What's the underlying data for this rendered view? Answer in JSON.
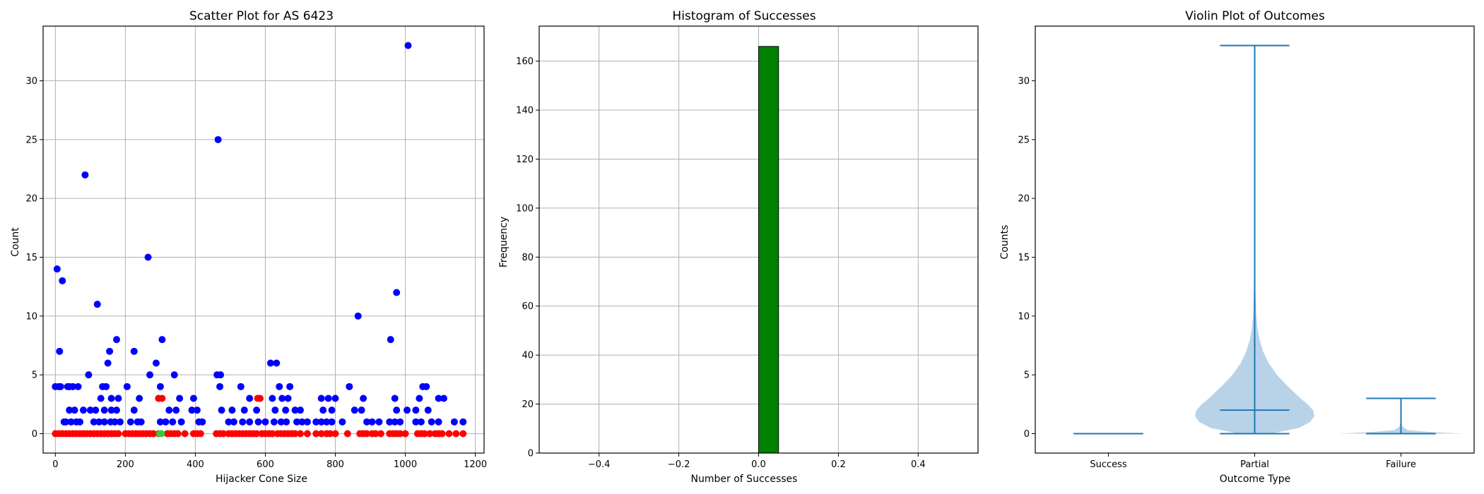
{
  "chart_data": [
    {
      "type": "scatter",
      "title": "Scatter Plot for AS 6423",
      "xlabel": "Hijacker Cone Size",
      "ylabel": "Count",
      "xlim": [
        -35,
        1225
      ],
      "ylim": [
        -1.65,
        34.65
      ],
      "xticks": [
        0,
        200,
        400,
        600,
        800,
        1000,
        1200
      ],
      "yticks": [
        0,
        5,
        10,
        15,
        20,
        25,
        30
      ],
      "grid": true,
      "series": [
        {
          "color": "#0000ff",
          "points": [
            [
              5,
              14
            ],
            [
              12,
              7
            ],
            [
              20,
              13
            ],
            [
              85,
              22
            ],
            [
              120,
              11
            ],
            [
              265,
              15
            ],
            [
              465,
              25
            ],
            [
              1008,
              33
            ],
            [
              865,
              10
            ],
            [
              975,
              12
            ],
            [
              958,
              8
            ],
            [
              175,
              8
            ],
            [
              305,
              8
            ],
            [
              155,
              7
            ],
            [
              225,
              7
            ],
            [
              615,
              6
            ],
            [
              632,
              6
            ],
            [
              150,
              6
            ],
            [
              288,
              6
            ],
            [
              0,
              4
            ],
            [
              15,
              4
            ],
            [
              35,
              4
            ],
            [
              50,
              4
            ],
            [
              65,
              4
            ],
            [
              95,
              5
            ],
            [
              270,
              5
            ],
            [
              340,
              5
            ],
            [
              462,
              5
            ],
            [
              472,
              5
            ],
            [
              10,
              4
            ],
            [
              40,
              4
            ],
            [
              135,
              4
            ],
            [
              145,
              4
            ],
            [
              205,
              4
            ],
            [
              300,
              4
            ],
            [
              470,
              4
            ],
            [
              530,
              4
            ],
            [
              640,
              4
            ],
            [
              670,
              4
            ],
            [
              840,
              4
            ],
            [
              1050,
              4
            ],
            [
              1060,
              4
            ],
            [
              80,
              2
            ],
            [
              130,
              3
            ],
            [
              160,
              3
            ],
            [
              180,
              3
            ],
            [
              240,
              3
            ],
            [
              295,
              3
            ],
            [
              355,
              3
            ],
            [
              395,
              3
            ],
            [
              555,
              3
            ],
            [
              620,
              3
            ],
            [
              648,
              3
            ],
            [
              665,
              3
            ],
            [
              760,
              3
            ],
            [
              780,
              3
            ],
            [
              800,
              3
            ],
            [
              880,
              3
            ],
            [
              970,
              3
            ],
            [
              1040,
              3
            ],
            [
              1095,
              3
            ],
            [
              1110,
              3
            ],
            [
              40,
              2
            ],
            [
              55,
              2
            ],
            [
              100,
              2
            ],
            [
              115,
              2
            ],
            [
              140,
              2
            ],
            [
              160,
              2
            ],
            [
              175,
              2
            ],
            [
              225,
              2
            ],
            [
              325,
              2
            ],
            [
              345,
              2
            ],
            [
              390,
              2
            ],
            [
              405,
              2
            ],
            [
              475,
              2
            ],
            [
              505,
              2
            ],
            [
              540,
              2
            ],
            [
              575,
              2
            ],
            [
              628,
              2
            ],
            [
              658,
              2
            ],
            [
              685,
              2
            ],
            [
              700,
              2
            ],
            [
              765,
              2
            ],
            [
              790,
              2
            ],
            [
              855,
              2
            ],
            [
              875,
              2
            ],
            [
              975,
              2
            ],
            [
              1005,
              2
            ],
            [
              1030,
              2
            ],
            [
              1065,
              2
            ],
            [
              25,
              1
            ],
            [
              30,
              1
            ],
            [
              45,
              1
            ],
            [
              60,
              1
            ],
            [
              70,
              1
            ],
            [
              110,
              1
            ],
            [
              125,
              1
            ],
            [
              140,
              1
            ],
            [
              158,
              1
            ],
            [
              170,
              1
            ],
            [
              185,
              1
            ],
            [
              215,
              1
            ],
            [
              235,
              1
            ],
            [
              245,
              1
            ],
            [
              300,
              1
            ],
            [
              315,
              1
            ],
            [
              335,
              1
            ],
            [
              360,
              1
            ],
            [
              410,
              1
            ],
            [
              420,
              1
            ],
            [
              495,
              1
            ],
            [
              510,
              1
            ],
            [
              535,
              1
            ],
            [
              555,
              1
            ],
            [
              580,
              1
            ],
            [
              600,
              1
            ],
            [
              625,
              1
            ],
            [
              645,
              1
            ],
            [
              660,
              1
            ],
            [
              690,
              1
            ],
            [
              705,
              1
            ],
            [
              720,
              1
            ],
            [
              745,
              1
            ],
            [
              760,
              1
            ],
            [
              775,
              1
            ],
            [
              790,
              1
            ],
            [
              820,
              1
            ],
            [
              890,
              1
            ],
            [
              905,
              1
            ],
            [
              925,
              1
            ],
            [
              955,
              1
            ],
            [
              970,
              1
            ],
            [
              985,
              1
            ],
            [
              1030,
              1
            ],
            [
              1045,
              1
            ],
            [
              1075,
              1
            ],
            [
              1095,
              1
            ],
            [
              1140,
              1
            ],
            [
              1165,
              1
            ]
          ]
        },
        {
          "color": "#ff0000",
          "points": [
            [
              0,
              0
            ],
            [
              10,
              0
            ],
            [
              20,
              0
            ],
            [
              30,
              0
            ],
            [
              40,
              0
            ],
            [
              50,
              0
            ],
            [
              60,
              0
            ],
            [
              70,
              0
            ],
            [
              80,
              0
            ],
            [
              90,
              0
            ],
            [
              100,
              0
            ],
            [
              110,
              0
            ],
            [
              120,
              0
            ],
            [
              130,
              0
            ],
            [
              140,
              0
            ],
            [
              150,
              0
            ],
            [
              160,
              0
            ],
            [
              170,
              0
            ],
            [
              180,
              0
            ],
            [
              200,
              0
            ],
            [
              210,
              0
            ],
            [
              220,
              0
            ],
            [
              230,
              0
            ],
            [
              240,
              0
            ],
            [
              250,
              0
            ],
            [
              260,
              0
            ],
            [
              270,
              0
            ],
            [
              280,
              0
            ],
            [
              295,
              0
            ],
            [
              320,
              0
            ],
            [
              330,
              0
            ],
            [
              340,
              0
            ],
            [
              350,
              0
            ],
            [
              370,
              0
            ],
            [
              395,
              0
            ],
            [
              405,
              0
            ],
            [
              415,
              0
            ],
            [
              460,
              0
            ],
            [
              470,
              0
            ],
            [
              480,
              0
            ],
            [
              495,
              0
            ],
            [
              505,
              0
            ],
            [
              515,
              0
            ],
            [
              525,
              0
            ],
            [
              535,
              0
            ],
            [
              545,
              0
            ],
            [
              555,
              0
            ],
            [
              565,
              0
            ],
            [
              575,
              0
            ],
            [
              590,
              0
            ],
            [
              600,
              0
            ],
            [
              610,
              0
            ],
            [
              620,
              0
            ],
            [
              635,
              0
            ],
            [
              645,
              0
            ],
            [
              655,
              0
            ],
            [
              665,
              0
            ],
            [
              675,
              0
            ],
            [
              685,
              0
            ],
            [
              700,
              0
            ],
            [
              720,
              0
            ],
            [
              745,
              0
            ],
            [
              760,
              0
            ],
            [
              775,
              0
            ],
            [
              785,
              0
            ],
            [
              800,
              0
            ],
            [
              835,
              0
            ],
            [
              870,
              0
            ],
            [
              880,
              0
            ],
            [
              890,
              0
            ],
            [
              905,
              0
            ],
            [
              915,
              0
            ],
            [
              930,
              0
            ],
            [
              955,
              0
            ],
            [
              965,
              0
            ],
            [
              975,
              0
            ],
            [
              985,
              0
            ],
            [
              1000,
              0
            ],
            [
              1035,
              0
            ],
            [
              1045,
              0
            ],
            [
              1055,
              0
            ],
            [
              1070,
              0
            ],
            [
              1085,
              0
            ],
            [
              1095,
              0
            ],
            [
              1105,
              0
            ],
            [
              1125,
              0
            ],
            [
              1145,
              0
            ],
            [
              1165,
              0
            ],
            [
              295,
              3
            ],
            [
              305,
              3
            ],
            [
              578,
              3
            ],
            [
              585,
              3
            ]
          ]
        },
        {
          "color": "#32cd32",
          "points": [
            [
              298,
              0
            ],
            [
              303,
              0
            ]
          ]
        }
      ]
    },
    {
      "type": "bar",
      "title": "Histogram of Successes",
      "xlabel": "Number of Successes",
      "ylabel": "Frequency",
      "xlim": [
        -0.55,
        0.55
      ],
      "ylim": [
        0,
        174.3
      ],
      "xticks": [
        -0.4,
        -0.2,
        0.0,
        0.2,
        0.4
      ],
      "xtick_labels": [
        "−0.4",
        "−0.2",
        "0.0",
        "0.2",
        "0.4"
      ],
      "yticks": [
        0,
        20,
        40,
        60,
        80,
        100,
        120,
        140,
        160
      ],
      "grid": true,
      "bins": [
        {
          "x0": 0.0,
          "x1": 0.05,
          "value": 166
        }
      ],
      "bar_color": "#008000",
      "edge_color": "#000000"
    },
    {
      "type": "violin",
      "title": "Violin Plot of Outcomes",
      "xlabel": "Outcome Type",
      "ylabel": "Counts",
      "categories": [
        "Success",
        "Partial",
        "Failure"
      ],
      "ylim": [
        -1.65,
        34.65
      ],
      "yticks": [
        0,
        5,
        10,
        15,
        20,
        25,
        30
      ],
      "grid": false,
      "color": "#1f77b4",
      "fill": "#b8d3e8",
      "violins": [
        {
          "min": 0,
          "max": 0,
          "median": 0,
          "profile": []
        },
        {
          "min": 0,
          "max": 33,
          "median": 2,
          "profile": [
            [
              0,
              0.12
            ],
            [
              0.5,
              0.32
            ],
            [
              1,
              0.4
            ],
            [
              1.5,
              0.43
            ],
            [
              2,
              0.42
            ],
            [
              2.5,
              0.38
            ],
            [
              3,
              0.33
            ],
            [
              4,
              0.24
            ],
            [
              5,
              0.16
            ],
            [
              6,
              0.1
            ],
            [
              7,
              0.06
            ],
            [
              8,
              0.035
            ],
            [
              9,
              0.02
            ],
            [
              10,
              0.012
            ],
            [
              12,
              0.006
            ],
            [
              15,
              0.003
            ],
            [
              20,
              0.001
            ],
            [
              25,
              0.0005
            ],
            [
              33,
              0
            ]
          ]
        },
        {
          "min": 0,
          "max": 3,
          "median": 0,
          "profile": [
            [
              0,
              0.45
            ],
            [
              0.15,
              0.2
            ],
            [
              0.3,
              0.05
            ],
            [
              0.6,
              0.01
            ],
            [
              1,
              0.004
            ],
            [
              2,
              0.001
            ],
            [
              3,
              0
            ]
          ]
        }
      ]
    }
  ]
}
